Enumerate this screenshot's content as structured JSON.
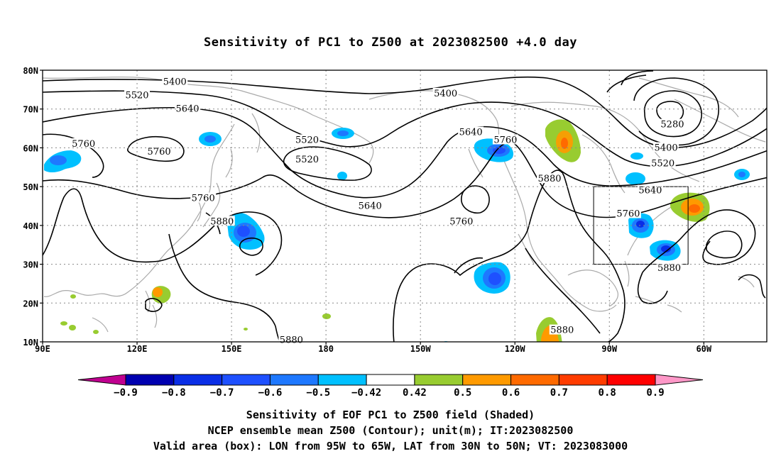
{
  "title": "Sensitivity of PC1 to Z500 at 2023082500 +4.0 day",
  "map": {
    "lat_ticks": [
      "80N",
      "70N",
      "60N",
      "50N",
      "40N",
      "30N",
      "20N",
      "10N"
    ],
    "lon_ticks": [
      "90E",
      "120E",
      "150E",
      "180",
      "150W",
      "120W",
      "90W",
      "60W"
    ],
    "lon_range": [
      90,
      320
    ],
    "lat_range": [
      10,
      80
    ],
    "grid": "dotted",
    "contour_color": "#000000",
    "coastline_color": "#aaaaaa",
    "contour_labels": [
      {
        "text": "5400",
        "lon": 132,
        "lat": 77
      },
      {
        "text": "5520",
        "lon": 120,
        "lat": 73.5
      },
      {
        "text": "5640",
        "lon": 136,
        "lat": 70
      },
      {
        "text": "5760",
        "lon": 103,
        "lat": 61
      },
      {
        "text": "5760",
        "lon": 127,
        "lat": 59
      },
      {
        "text": "5520",
        "lon": 174,
        "lat": 62
      },
      {
        "text": "5520",
        "lon": 174,
        "lat": 57
      },
      {
        "text": "5400",
        "lon": 218,
        "lat": 74
      },
      {
        "text": "5640",
        "lon": 226,
        "lat": 64
      },
      {
        "text": "5760",
        "lon": 237,
        "lat": 62
      },
      {
        "text": "5760",
        "lon": 141,
        "lat": 47
      },
      {
        "text": "5640",
        "lon": 194,
        "lat": 45
      },
      {
        "text": "5880",
        "lon": 147,
        "lat": 41
      },
      {
        "text": "5760",
        "lon": 223,
        "lat": 41
      },
      {
        "text": "5880",
        "lon": 251,
        "lat": 52
      },
      {
        "text": "5280",
        "lon": 290,
        "lat": 66
      },
      {
        "text": "5400",
        "lon": 288,
        "lat": 60
      },
      {
        "text": "5520",
        "lon": 287,
        "lat": 56
      },
      {
        "text": "5640",
        "lon": 283,
        "lat": 49
      },
      {
        "text": "5760",
        "lon": 276,
        "lat": 43
      },
      {
        "text": "5880",
        "lon": 289,
        "lat": 29
      },
      {
        "text": "5880",
        "lon": 255,
        "lat": 13
      },
      {
        "text": "5880",
        "lon": 169,
        "lat": 10.5
      }
    ],
    "box_label": "Valid area (box)",
    "box": {
      "lon_w": 265,
      "lon_e": 295,
      "lat_s": 30,
      "lat_n": 50
    }
  },
  "colorbar": {
    "labels": [
      "-0.9",
      "-0.8",
      "-0.7",
      "-0.6",
      "-0.5",
      "-0.42",
      "0.42",
      "0.5",
      "0.6",
      "0.7",
      "0.8",
      "0.9"
    ],
    "colors": [
      "#c00090",
      "#0000b0",
      "#0a2ee6",
      "#1e50ff",
      "#1e78ff",
      "#00c0ff",
      "#ffffff",
      "#98cc30",
      "#ff9a00",
      "#ff6a00",
      "#ff3c00",
      "#ff0000",
      "#ff98c8"
    ]
  },
  "captions": [
    "Sensitivity of EOF PC1 to Z500 field (Shaded)",
    "NCEP ensemble mean Z500 (Contour); unit(m); IT:2023082500",
    "Valid area (box): LON from 95W to 65W, LAT from 30N to 50N; VT: 2023083000"
  ]
}
